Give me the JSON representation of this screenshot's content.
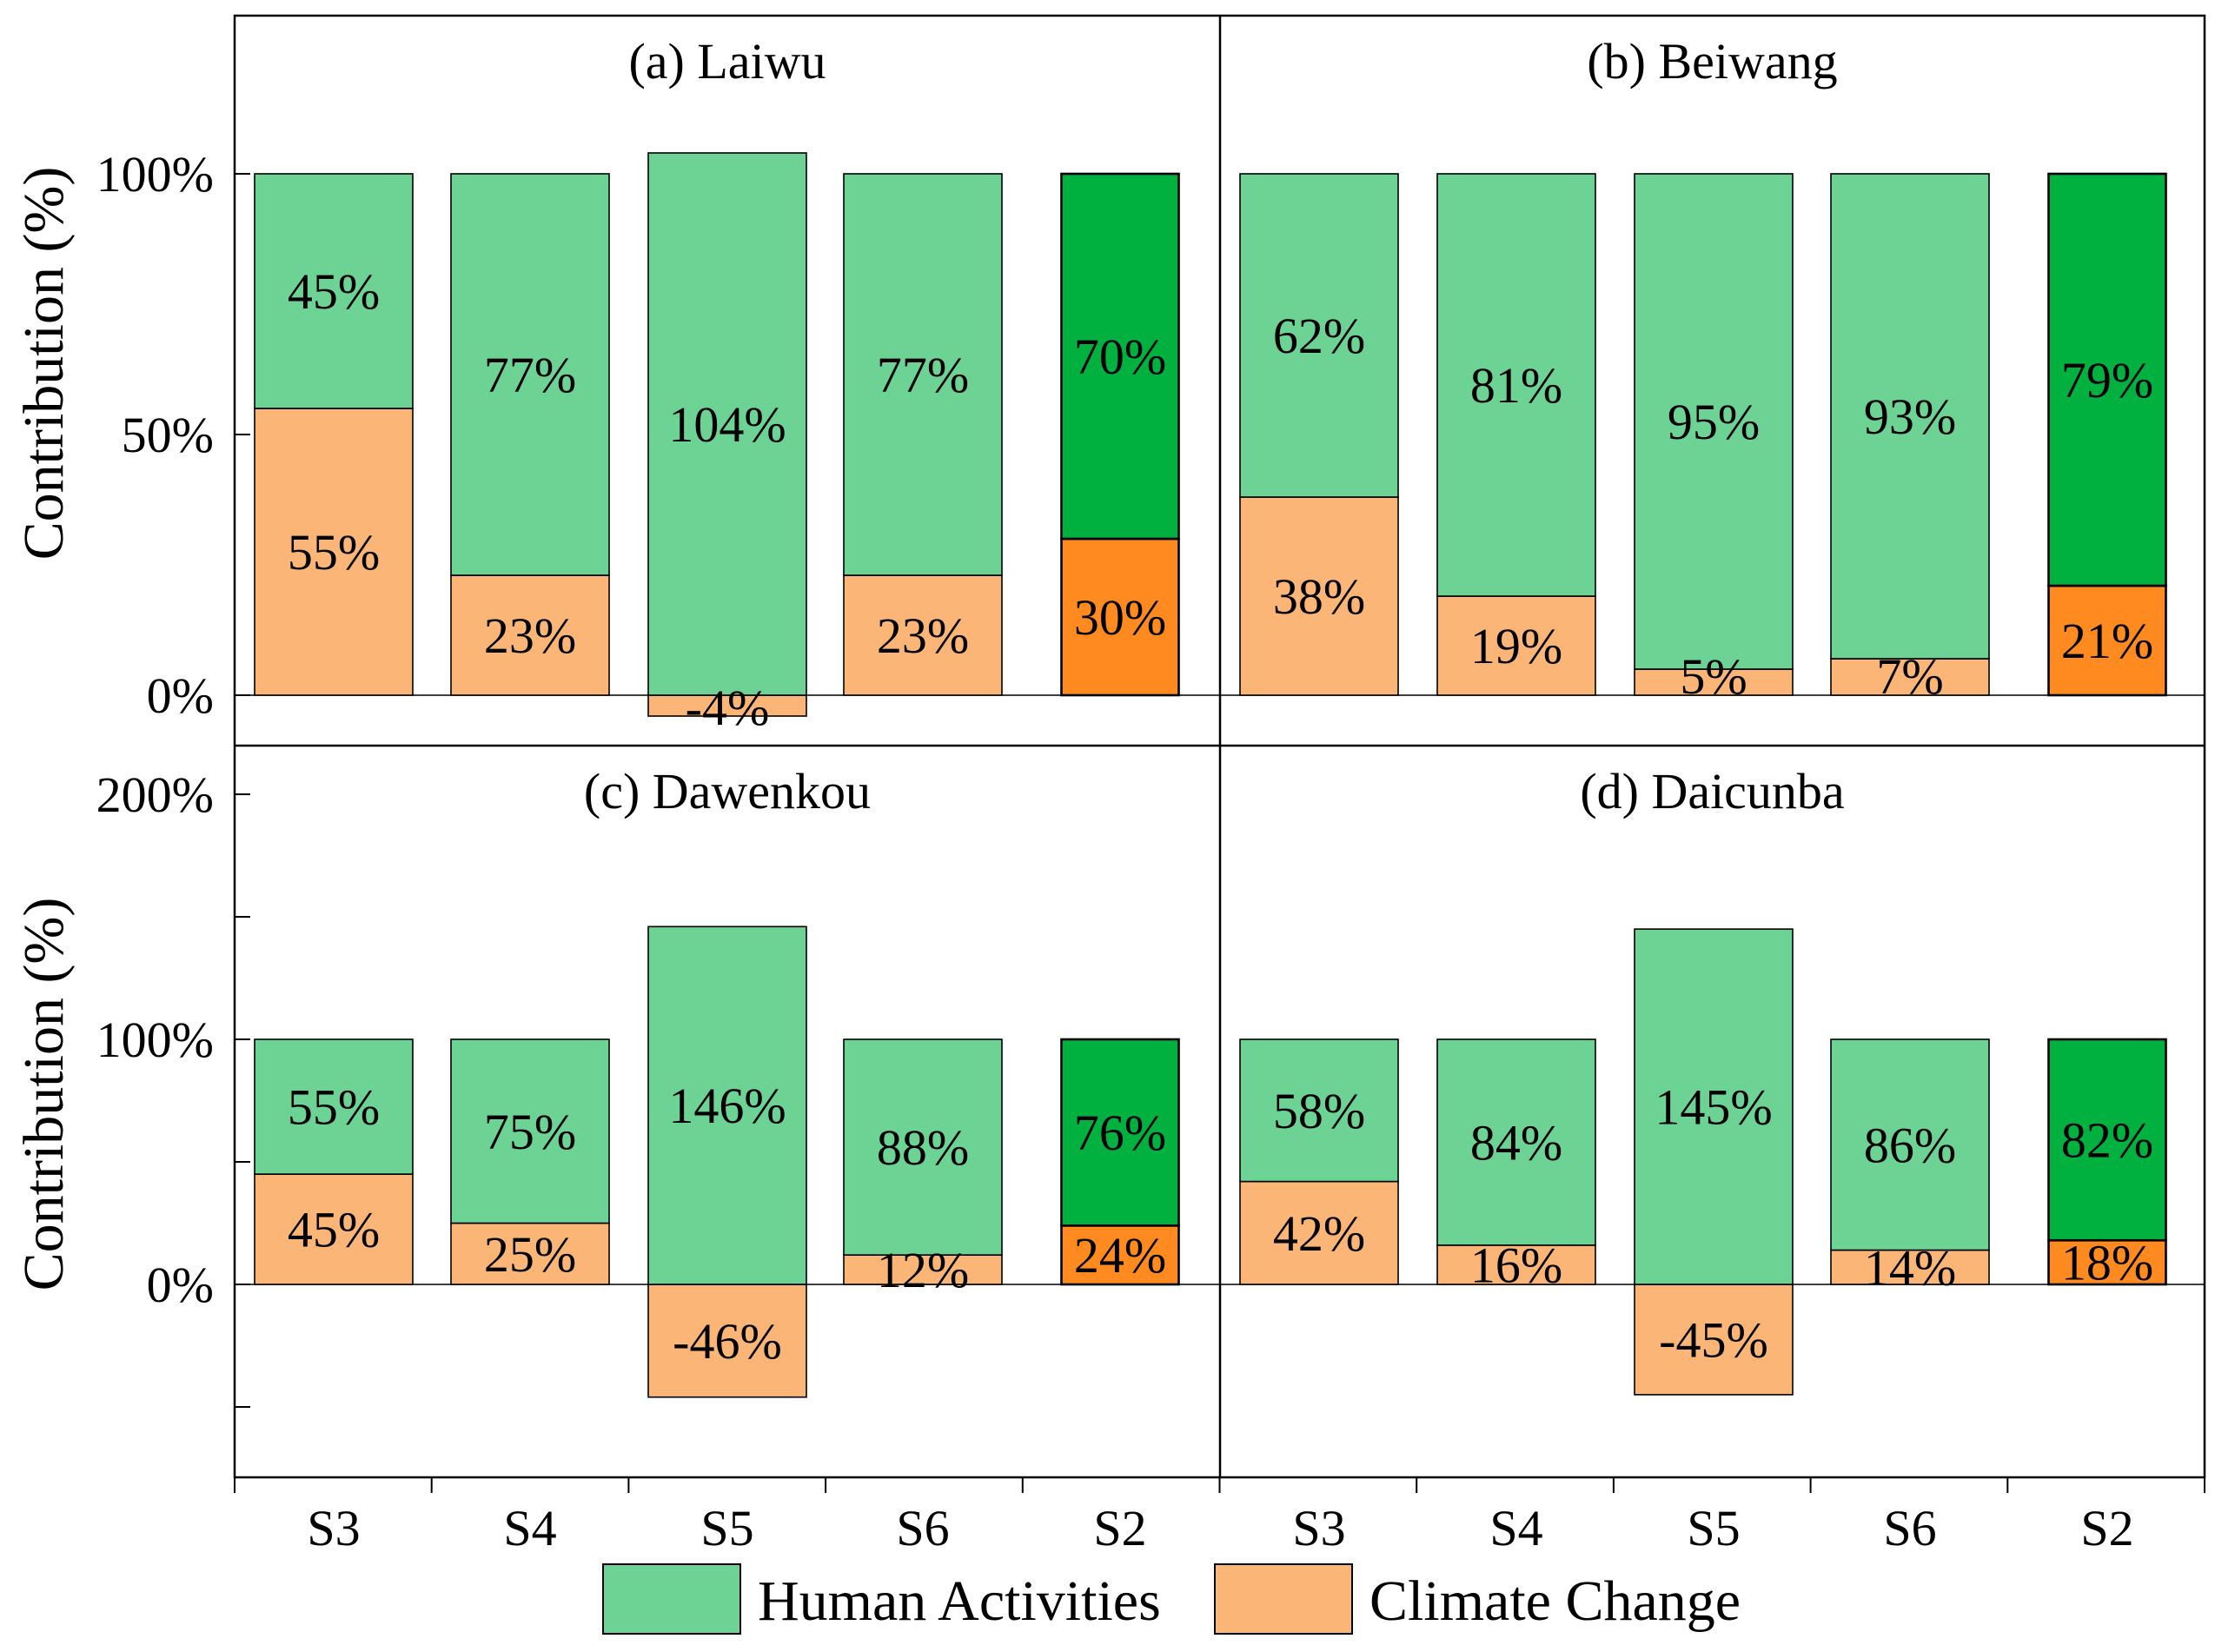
{
  "chart_data": {
    "type": "bar",
    "stacked": true,
    "shared_x_categories": [
      "S3",
      "S4",
      "S5",
      "S6",
      "S2"
    ],
    "y_axis_label": "Contribution (%)",
    "legend": [
      {
        "name": "Human Activities",
        "color": "#6dd394"
      },
      {
        "name": "Climate Change",
        "color": "#fbb576"
      }
    ],
    "highlight_colors": {
      "human": "#00b140",
      "climate": "#ff8a1f"
    },
    "highlight_category": "S2",
    "panels": [
      {
        "title": "(a) Laiwu",
        "row": "top",
        "col": "left",
        "ylim": [
          -10,
          125
        ],
        "yticks": [
          0,
          50,
          100
        ],
        "ytick_labels": [
          "0%",
          "50%",
          "100%"
        ],
        "series": [
          {
            "name": "Human Activities",
            "values": [
              45,
              77,
              104,
              77,
              70
            ],
            "labels": [
              "45%",
              "77%",
              "104%",
              "77%",
              "70%"
            ]
          },
          {
            "name": "Climate Change",
            "values": [
              55,
              23,
              -4,
              23,
              30
            ],
            "labels": [
              "55%",
              "23%",
              "-4%",
              "23%",
              "30%"
            ]
          }
        ]
      },
      {
        "title": "(b) Beiwang",
        "row": "top",
        "col": "right",
        "ylim": [
          -10,
          125
        ],
        "yticks": [
          0,
          50,
          100
        ],
        "ytick_labels": [],
        "series": [
          {
            "name": "Human Activities",
            "values": [
              62,
              81,
              95,
              93,
              79
            ],
            "labels": [
              "62%",
              "81%",
              "95%",
              "93%",
              "79%"
            ]
          },
          {
            "name": "Climate Change",
            "values": [
              38,
              19,
              5,
              7,
              21
            ],
            "labels": [
              "38%",
              "19%",
              "5%",
              "7%",
              "21%"
            ]
          }
        ]
      },
      {
        "title": "(c) Dawenkou",
        "row": "bottom",
        "col": "left",
        "ylim": [
          -79,
          216
        ],
        "yticks": [
          -50,
          0,
          50,
          100,
          150,
          200
        ],
        "ytick_labels": [
          "",
          "0%",
          "",
          "100%",
          "",
          "200%"
        ],
        "series": [
          {
            "name": "Human Activities",
            "values": [
              55,
              75,
              146,
              88,
              76
            ],
            "labels": [
              "55%",
              "75%",
              "146%",
              "88%",
              "76%"
            ]
          },
          {
            "name": "Climate Change",
            "values": [
              45,
              25,
              -46,
              12,
              24
            ],
            "labels": [
              "45%",
              "25%",
              "-46%",
              "12%",
              "24%"
            ]
          }
        ]
      },
      {
        "title": "(d) Daicunba",
        "row": "bottom",
        "col": "right",
        "ylim": [
          -79,
          216
        ],
        "yticks": [
          -50,
          0,
          50,
          100,
          150,
          200
        ],
        "ytick_labels": [],
        "series": [
          {
            "name": "Human Activities",
            "values": [
              58,
              84,
              145,
              86,
              82
            ],
            "labels": [
              "58%",
              "84%",
              "145%",
              "86%",
              "82%"
            ]
          },
          {
            "name": "Climate Change",
            "values": [
              42,
              16,
              -45,
              14,
              18
            ],
            "labels": [
              "42%",
              "16%",
              "-45%",
              "14%",
              "18%"
            ]
          }
        ]
      }
    ]
  }
}
